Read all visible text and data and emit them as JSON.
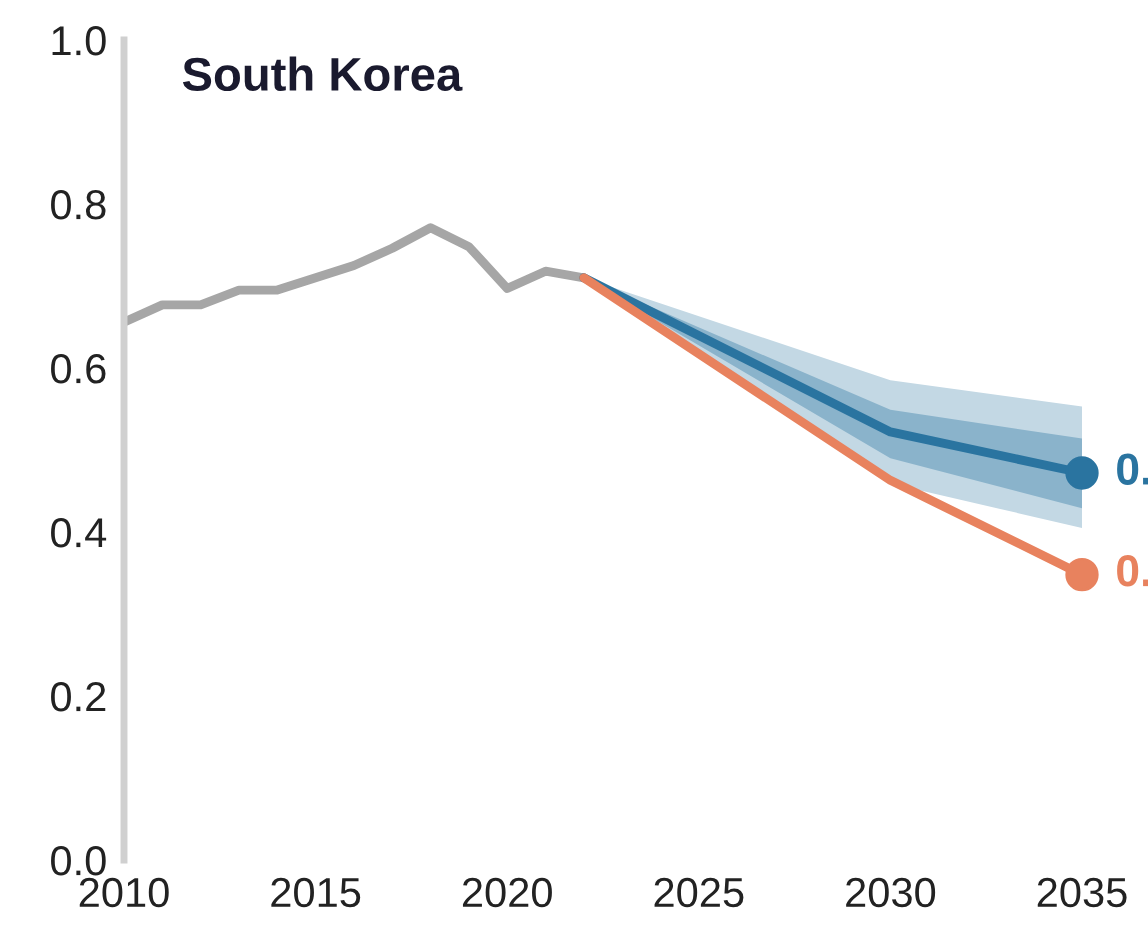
{
  "chart_data": {
    "type": "line",
    "title": "South Korea",
    "xlim": [
      2010,
      2035
    ],
    "xticks": [
      2010,
      2015,
      2020,
      2025,
      2030,
      2035
    ],
    "ylim": [
      0,
      1
    ],
    "yticks": [
      {
        "value": 0,
        "label": "0.0"
      },
      0.2,
      0.4,
      0.6,
      0.8,
      {
        "value": 1,
        "label": "1.0"
      }
    ],
    "grid": false,
    "legend": false,
    "series": [
      {
        "color": "#a6a6a6",
        "x": [
          2010,
          2011,
          2012,
          2013,
          2014,
          2015,
          2016,
          2017,
          2018,
          2019,
          2020,
          2021,
          2022
        ],
        "values": [
          0.656,
          0.677,
          0.677,
          0.695,
          0.695,
          0.71,
          0.725,
          0.746,
          0.771,
          0.748,
          0.697,
          0.718,
          0.71
        ]
      },
      {
        "color": "#2a74a0",
        "x": [
          2022,
          2030,
          2035
        ],
        "values": [
          null,
          null,
          null
        ],
        "lower": [
          0.71,
          0.459,
          0.405
        ],
        "upper": [
          0.71,
          0.585,
          0.553
        ]
      },
      {
        "color": "#2a74a0",
        "x": [
          2022,
          2030,
          2035
        ],
        "values": [
          0.71,
          0.522,
          0.472
        ],
        "lower": [
          0.71,
          0.49,
          0.429
        ],
        "upper": [
          0.71,
          0.549,
          0.514
        ]
      },
      {
        "color": "#e8825e",
        "x": [
          2022,
          2030,
          2035
        ],
        "values": [
          0.71,
          0.463,
          0.348
        ]
      },
      {
        "type": "scatter",
        "color": "#2a74a0",
        "x": [
          2035
        ],
        "values": [
          0.472
        ],
        "marker": "circle"
      },
      {
        "type": "scatter",
        "color": "#e8825e",
        "x": [
          2035
        ],
        "values": [
          0.348
        ],
        "marker": "circle"
      }
    ],
    "annotations": [
      {
        "text": "0.",
        "x": 2035,
        "y": 0.472
      },
      {
        "text": "0.",
        "x": 2035,
        "y": 0.348
      }
    ]
  }
}
